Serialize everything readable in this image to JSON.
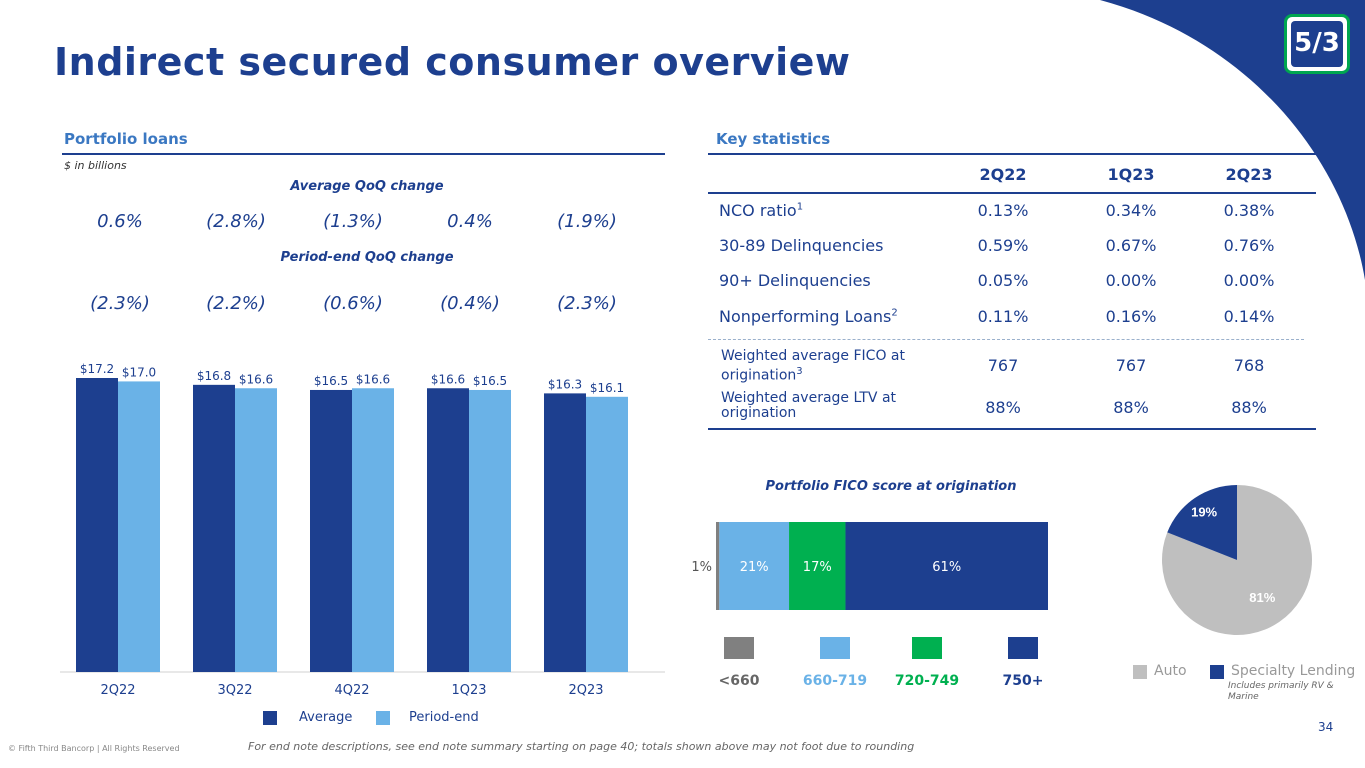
{
  "title": "Indirect secured consumer overview",
  "page_number": "34",
  "copyright": "© Fifth Third Bancorp | All Rights Reserved",
  "footnote": "For end note descriptions, see end note summary starting on page 40; totals shown above may not foot due to rounding",
  "logo_text": "5/3",
  "colors": {
    "dark_blue": "#1d3f8f",
    "light_blue": "#6ab2e7",
    "green": "#00b050",
    "gray": "#808080",
    "pie_gray": "#bfbfbf"
  },
  "portfolio": {
    "heading": "Portfolio loans",
    "units": "$ in billions",
    "avg_qoq_heading": "Average QoQ change",
    "avg_qoq_values": [
      "0.6%",
      "(2.8%)",
      "(1.3%)",
      "0.4%",
      "(1.9%)"
    ],
    "pe_qoq_heading": "Period-end QoQ change",
    "pe_qoq_values": [
      "(2.3%)",
      "(2.2%)",
      "(0.6%)",
      "(0.4%)",
      "(2.3%)"
    ]
  },
  "key_stats": {
    "heading": "Key statistics",
    "columns": [
      "2Q22",
      "1Q23",
      "2Q23"
    ],
    "rows": [
      {
        "label": "NCO ratio",
        "sup": "1",
        "values": [
          "0.13%",
          "0.34%",
          "0.38%"
        ]
      },
      {
        "label": "30-89 Delinquencies",
        "sup": "",
        "values": [
          "0.59%",
          "0.67%",
          "0.76%"
        ]
      },
      {
        "label": "90+ Delinquencies",
        "sup": "",
        "values": [
          "0.05%",
          "0.00%",
          "0.00%"
        ]
      },
      {
        "label": "Nonperforming Loans",
        "sup": "2",
        "values": [
          "0.11%",
          "0.16%",
          "0.14%"
        ]
      }
    ],
    "rows2": [
      {
        "label": "Weighted average FICO at origination",
        "sup": "3",
        "values": [
          "767",
          "767",
          "768"
        ]
      },
      {
        "label": "Weighted average LTV at origination",
        "sup": "",
        "values": [
          "88%",
          "88%",
          "88%"
        ]
      }
    ]
  },
  "chart_data": [
    {
      "type": "bar",
      "categories": [
        "2Q22",
        "3Q22",
        "4Q22",
        "1Q23",
        "2Q23"
      ],
      "series": [
        {
          "name": "Average",
          "values": [
            17.2,
            16.8,
            16.5,
            16.6,
            16.3
          ],
          "labels": [
            "$17.2",
            "$16.8",
            "$16.5",
            "$16.6",
            "$16.3"
          ],
          "color": "#1d3f8f"
        },
        {
          "name": "Period-end",
          "values": [
            17.0,
            16.6,
            16.6,
            16.5,
            16.1
          ],
          "labels": [
            "$17.0",
            "$16.6",
            "$16.6",
            "$16.5",
            "$16.1"
          ],
          "color": "#6ab2e7"
        }
      ],
      "ylim": [
        0,
        17.2
      ],
      "legend": "bottom",
      "grid": false
    },
    {
      "type": "bar",
      "orientation": "horizontal-stacked",
      "title": "Portfolio FICO score at origination",
      "categories": [
        "<660",
        "660-719",
        "720-749",
        "750+"
      ],
      "values": [
        1,
        21,
        17,
        61
      ],
      "labels": [
        "1%",
        "21%",
        "17%",
        "61%"
      ],
      "colors": [
        "#808080",
        "#6ab2e7",
        "#00b050",
        "#1d3f8f"
      ],
      "legend": "bottom"
    },
    {
      "type": "pie",
      "categories": [
        "Auto",
        "Specialty Lending"
      ],
      "values": [
        81,
        19
      ],
      "labels": [
        "81%",
        "19%"
      ],
      "colors": [
        "#bfbfbf",
        "#1d3f8f"
      ],
      "legend": "bottom",
      "legend_note": "Includes primarily RV & Marine"
    }
  ]
}
